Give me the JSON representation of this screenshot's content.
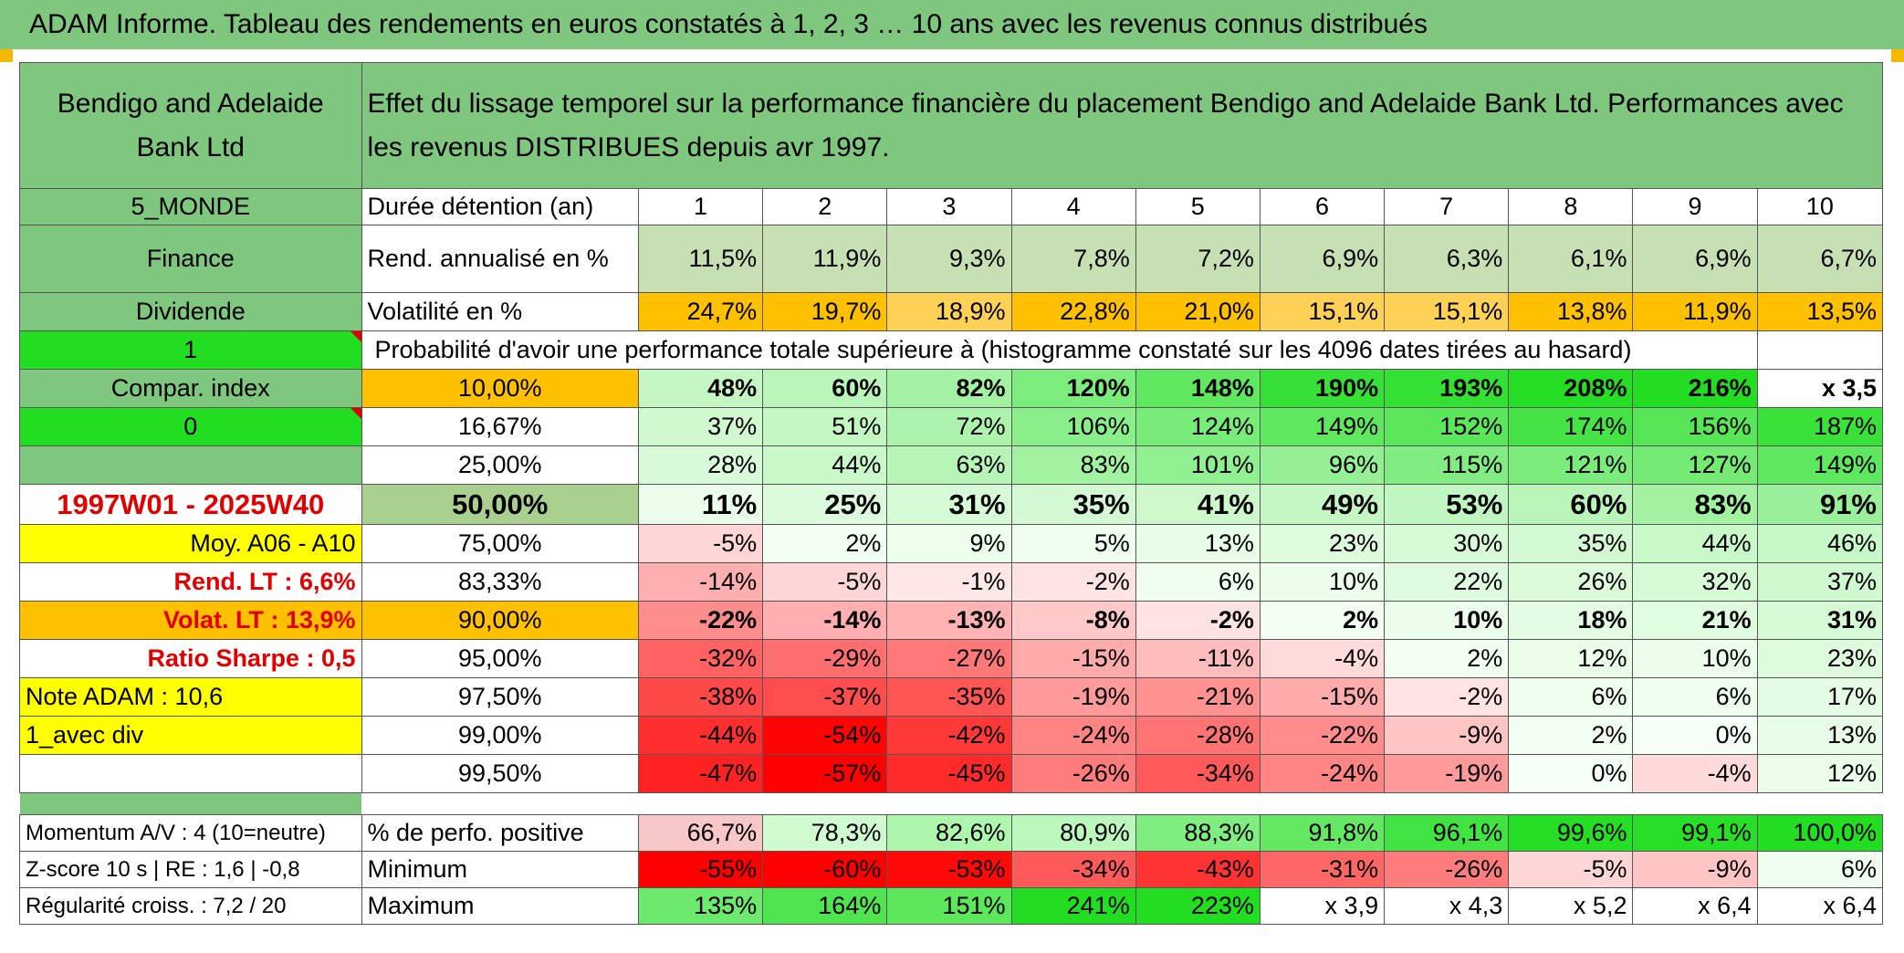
{
  "title": "ADAM Informe. Tableau des rendements en euros constatés à 1, 2, 3 … 10 ans avec les revenus connus distribués",
  "fund_name": "Bendigo and Adelaide Bank Ltd",
  "description": "Effet du lissage temporel sur la performance financière du placement Bendigo and Adelaide Bank Ltd. Performances avec les revenus DISTRIBUES depuis avr 1997.",
  "left_labels": {
    "region": "5_MONDE",
    "sector": "Finance",
    "type": "Dividende",
    "flag1": "1",
    "compar_index": "Compar. index",
    "flag0": "0",
    "period": "1997W01 - 2025W40",
    "moy": "Moy. A06 - A10",
    "rend_lt": "Rend. LT :   6,6%",
    "volat_lt": "Volat. LT :   13,9%",
    "sharpe": "Ratio Sharpe :    0,5",
    "note": "Note ADAM : 10,6",
    "avec_div": "1_avec div",
    "momentum": "Momentum A/V : 4 (10=neutre)",
    "zscore": "Z-score 10 s | RE : 1,6 | -0,8",
    "regularite": "Régularité croiss. : 7,2 / 20"
  },
  "header_rows": {
    "duree_label": "Durée détention (an)",
    "years": [
      "1",
      "2",
      "3",
      "4",
      "5",
      "6",
      "7",
      "8",
      "9",
      "10"
    ],
    "rend_label": "Rend. annualisé en %",
    "rend": [
      "11,5%",
      "11,9%",
      "9,3%",
      "7,8%",
      "7,2%",
      "6,9%",
      "6,3%",
      "6,1%",
      "6,9%",
      "6,7%"
    ],
    "vol_label": "Volatilité en %",
    "vol": [
      "24,7%",
      "19,7%",
      "18,9%",
      "22,8%",
      "21,0%",
      "15,1%",
      "15,1%",
      "13,8%",
      "11,9%",
      "13,5%"
    ],
    "prob_label": "Probabilité d'avoir une performance totale supérieure à (histogramme constaté sur les 4096 dates tirées au hasard)"
  },
  "prob_rows": [
    {
      "pct": "10,00%",
      "vals": [
        "48%",
        "60%",
        "82%",
        "120%",
        "148%",
        "190%",
        "193%",
        "208%",
        "216%",
        "x 3,5"
      ]
    },
    {
      "pct": "16,67%",
      "vals": [
        "37%",
        "51%",
        "72%",
        "106%",
        "124%",
        "149%",
        "152%",
        "174%",
        "156%",
        "187%"
      ]
    },
    {
      "pct": "25,00%",
      "vals": [
        "28%",
        "44%",
        "63%",
        "83%",
        "101%",
        "96%",
        "115%",
        "121%",
        "127%",
        "149%"
      ]
    },
    {
      "pct": "50,00%",
      "vals": [
        "11%",
        "25%",
        "31%",
        "35%",
        "41%",
        "49%",
        "53%",
        "60%",
        "83%",
        "91%"
      ]
    },
    {
      "pct": "75,00%",
      "vals": [
        "-5%",
        "2%",
        "9%",
        "5%",
        "13%",
        "23%",
        "30%",
        "35%",
        "44%",
        "46%"
      ]
    },
    {
      "pct": "83,33%",
      "vals": [
        "-14%",
        "-5%",
        "-1%",
        "-2%",
        "6%",
        "10%",
        "22%",
        "26%",
        "32%",
        "37%"
      ]
    },
    {
      "pct": "90,00%",
      "vals": [
        "-22%",
        "-14%",
        "-13%",
        "-8%",
        "-2%",
        "2%",
        "10%",
        "18%",
        "21%",
        "31%"
      ]
    },
    {
      "pct": "95,00%",
      "vals": [
        "-32%",
        "-29%",
        "-27%",
        "-15%",
        "-11%",
        "-4%",
        "2%",
        "12%",
        "10%",
        "23%"
      ]
    },
    {
      "pct": "97,50%",
      "vals": [
        "-38%",
        "-37%",
        "-35%",
        "-19%",
        "-21%",
        "-15%",
        "-2%",
        "6%",
        "6%",
        "17%"
      ]
    },
    {
      "pct": "99,00%",
      "vals": [
        "-44%",
        "-54%",
        "-42%",
        "-24%",
        "-28%",
        "-22%",
        "-9%",
        "2%",
        "0%",
        "13%"
      ]
    },
    {
      "pct": "99,50%",
      "vals": [
        "-47%",
        "-57%",
        "-45%",
        "-26%",
        "-34%",
        "-24%",
        "-19%",
        "0%",
        "-4%",
        "12%"
      ]
    }
  ],
  "bottom_rows": {
    "positive_label": "% de perfo. positive",
    "positive": [
      "66,7%",
      "78,3%",
      "82,6%",
      "80,9%",
      "88,3%",
      "91,8%",
      "96,1%",
      "99,6%",
      "99,1%",
      "100,0%"
    ],
    "min_label": "Minimum",
    "min": [
      "-55%",
      "-60%",
      "-53%",
      "-34%",
      "-43%",
      "-31%",
      "-26%",
      "-5%",
      "-9%",
      "6%"
    ],
    "max_label": "Maximum",
    "max": [
      "135%",
      "164%",
      "151%",
      "241%",
      "223%",
      "x 3,9",
      "x 4,3",
      "x 5,2",
      "x 6,4",
      "x 6,4"
    ]
  },
  "colors": {
    "header_green": "#7fc77f",
    "bright_green": "#22dd22",
    "orange": "#ffc000",
    "yellow": "#ffff00",
    "light_green": "#c6e0b4"
  }
}
